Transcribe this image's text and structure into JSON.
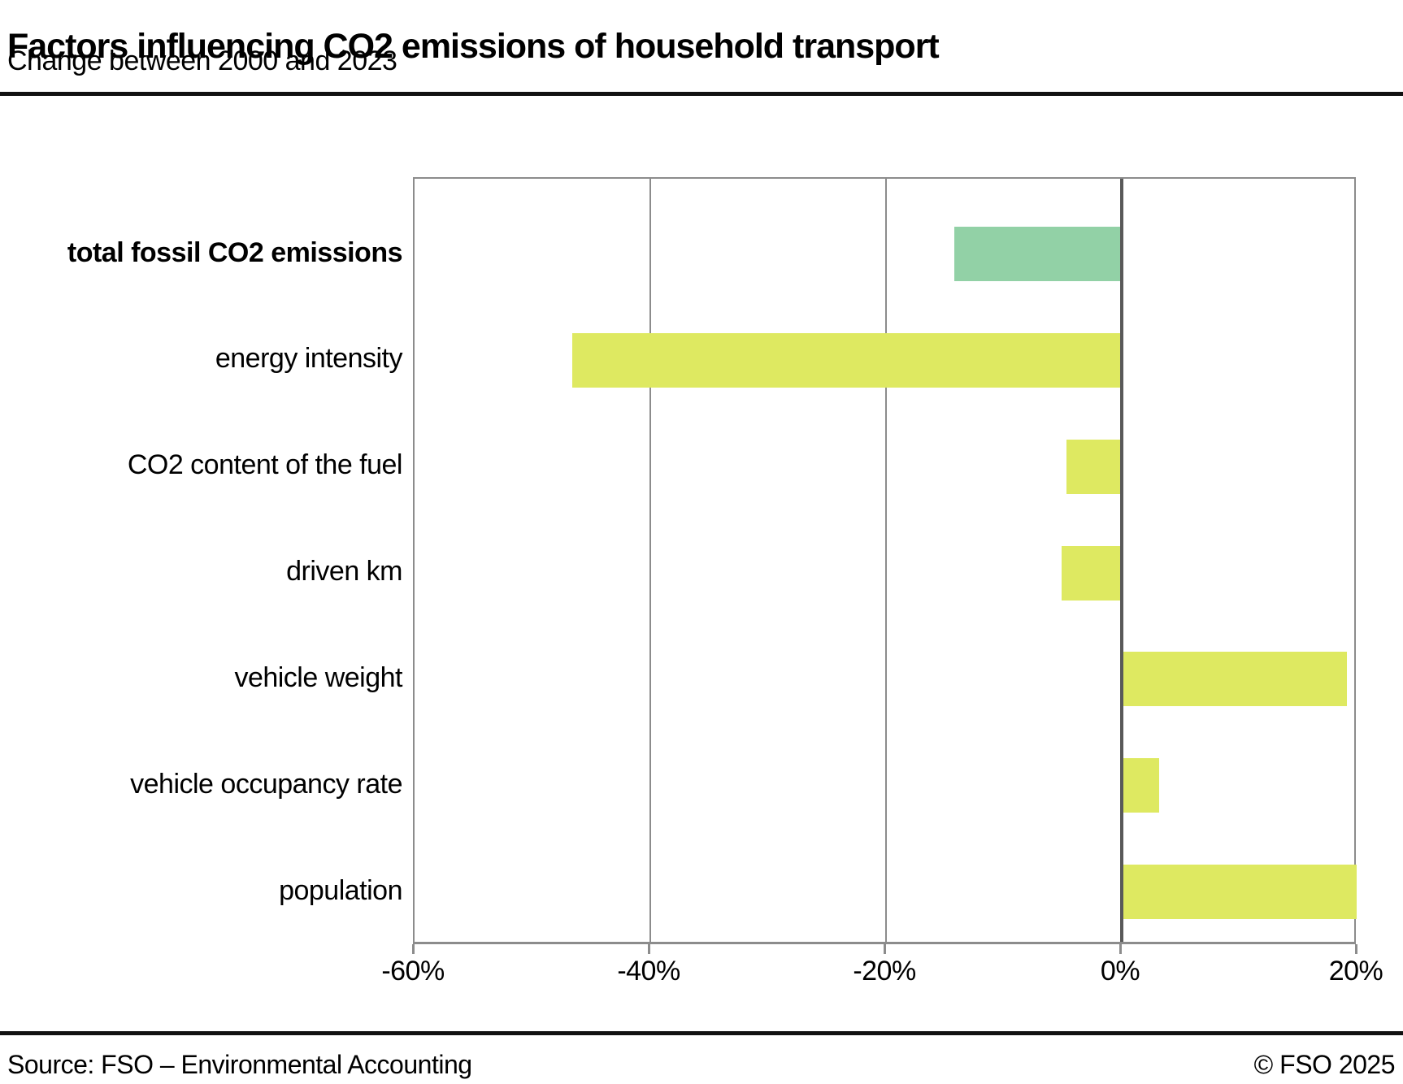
{
  "header": {
    "title": "Factors influencing CO2 emissions of household transport",
    "subtitle": "Change between 2000 and 2023"
  },
  "footer": {
    "source": "Source: FSO – Environmental Accounting",
    "copyright": "© FSO 2025"
  },
  "colors": {
    "highlight_bar": "#92d1a6",
    "default_bar": "#dee961",
    "gridline": "#8c8c8c",
    "zero_line": "#595959",
    "rule": "#111111"
  },
  "chart_data": {
    "type": "bar",
    "orientation": "horizontal",
    "title": "Factors influencing CO2 emissions of household transport",
    "subtitle": "Change between 2000 and 2023",
    "categories": [
      "total fossil CO2 emissions",
      "energy intensity",
      "CO2 content of the fuel",
      "driven km",
      "vehicle weight",
      "vehicle occupancy rate",
      "population"
    ],
    "values": [
      -14.2,
      -46.6,
      -4.7,
      -5.1,
      19.1,
      3.2,
      19.9
    ],
    "unit": "%",
    "bar_colors": [
      "#92d1a6",
      "#dee961",
      "#dee961",
      "#dee961",
      "#dee961",
      "#dee961",
      "#dee961"
    ],
    "bold_labels": [
      true,
      false,
      false,
      false,
      false,
      false,
      false
    ],
    "xlabel": "",
    "ylabel": "",
    "xlim": [
      -60,
      20
    ],
    "xticks": [
      -60,
      -40,
      -20,
      0,
      20
    ],
    "xtick_labels": [
      "-60%",
      "-40%",
      "-20%",
      "0%",
      "20%"
    ],
    "grid": "vertical",
    "zero_line": true,
    "legend": "none"
  }
}
